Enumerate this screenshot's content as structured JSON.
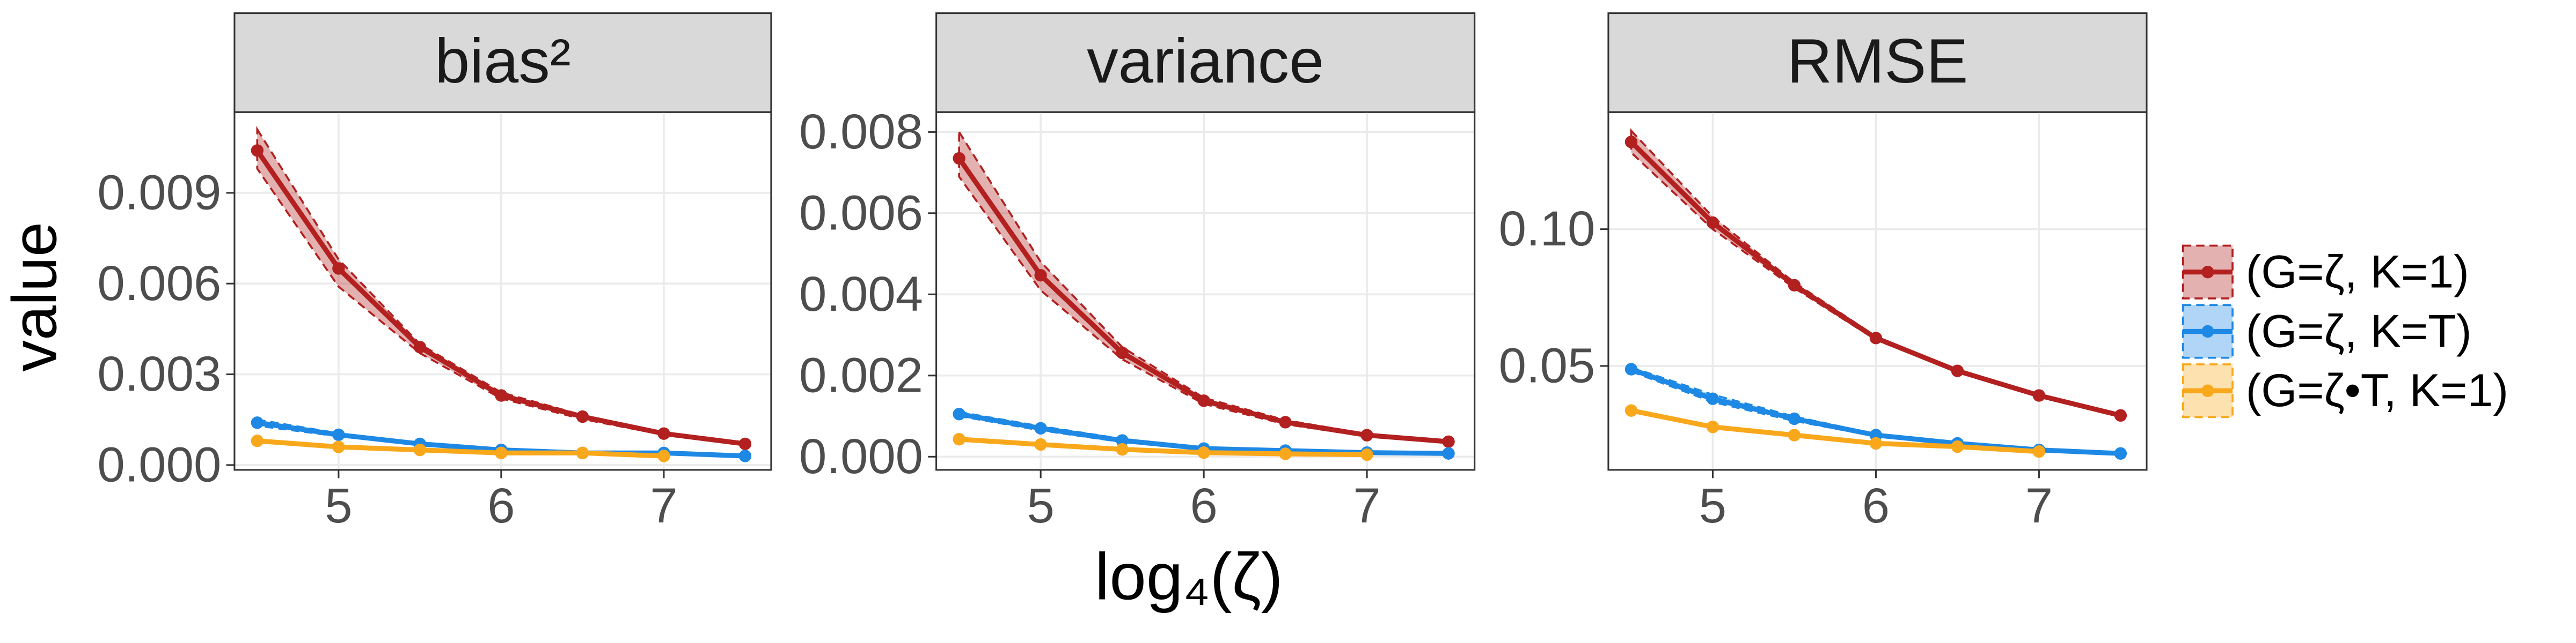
{
  "chart_data": [
    {
      "type": "line",
      "title": "bias²",
      "ylabel": "value",
      "x": [
        4.5,
        5,
        5.5,
        6,
        6.5,
        7,
        7.5
      ],
      "xlim": [
        4.36,
        7.66
      ],
      "xticks": [
        5,
        6,
        7
      ],
      "ylim": [
        -0.00016,
        0.01167
      ],
      "yticks": [
        {
          "value": 0,
          "label": "0.000"
        },
        {
          "value": 0.003,
          "label": "0.003"
        },
        {
          "value": 0.006,
          "label": "0.006"
        },
        {
          "value": 0.009,
          "label": "0.009"
        }
      ],
      "grid": true,
      "series": [
        {
          "name": "(G=ζ, K=1)",
          "color": "#b2201f",
          "values": [
            0.0104,
            0.0065,
            0.0039,
            0.0023,
            0.0016,
            0.00104,
            0.0007
          ],
          "upper": [
            0.0111,
            0.0068,
            0.004,
            0.0024,
            0.00165,
            0.00108,
            0.00073
          ],
          "lower": [
            0.0098,
            0.0059,
            0.0037,
            0.0022,
            0.00152,
            0.001,
            0.00067
          ]
        },
        {
          "name": "(G=ζ, K=T)",
          "color": "#1e88e5",
          "values": [
            0.0014,
            0.001,
            0.0007,
            0.0005,
            0.0004,
            0.0004,
            0.0003
          ],
          "upper": [
            0.0015,
            0.00105,
            0.00073,
            0.00053,
            0.00042,
            0.00042,
            0.00032
          ],
          "lower": [
            0.0013,
            0.00095,
            0.00067,
            0.00047,
            0.00038,
            0.00038,
            0.00028
          ]
        },
        {
          "name": "(G=ζ•T, K=1)",
          "color": "#f9a81b",
          "values": [
            0.0008,
            0.0006,
            0.0005,
            0.0004,
            0.0004,
            0.0003,
            null
          ],
          "upper": [
            0.00085,
            0.00063,
            0.00053,
            0.00043,
            0.00042,
            0.00032,
            null
          ],
          "lower": [
            0.00075,
            0.00057,
            0.00047,
            0.00037,
            0.00038,
            0.00028,
            null
          ]
        }
      ]
    },
    {
      "type": "line",
      "title": "variance",
      "xlabel": "log₄(ζ)",
      "x": [
        4.5,
        5,
        5.5,
        6,
        6.5,
        7,
        7.5
      ],
      "xlim": [
        4.36,
        7.66
      ],
      "xticks": [
        5,
        6,
        7
      ],
      "ylim": [
        -0.000325,
        0.00849
      ],
      "yticks": [
        {
          "value": 0,
          "label": "0.000"
        },
        {
          "value": 0.002,
          "label": "0.002"
        },
        {
          "value": 0.004,
          "label": "0.004"
        },
        {
          "value": 0.006,
          "label": "0.006"
        },
        {
          "value": 0.008,
          "label": "0.008"
        }
      ],
      "grid": true,
      "series": [
        {
          "name": "(G=ζ, K=1)",
          "color": "#b2201f",
          "values": [
            0.00735,
            0.00447,
            0.00256,
            0.00138,
            0.00085,
            0.00053,
            0.00037
          ],
          "upper": [
            0.008,
            0.0048,
            0.0027,
            0.00145,
            0.0009,
            0.00056,
            0.00039
          ],
          "lower": [
            0.0069,
            0.0041,
            0.0024,
            0.0013,
            0.0008,
            0.0005,
            0.00035
          ]
        },
        {
          "name": "(G=ζ, K=T)",
          "color": "#1e88e5",
          "values": [
            0.00105,
            0.0007,
            0.0004,
            0.0002,
            0.00015,
            0.0001,
            8e-05
          ],
          "upper": [
            0.0011,
            0.00075,
            0.00044,
            0.00023,
            0.00017,
            0.00012,
            0.0001
          ],
          "lower": [
            0.001,
            0.00065,
            0.00036,
            0.00017,
            0.00013,
            8e-05,
            6e-05
          ]
        },
        {
          "name": "(G=ζ•T, K=1)",
          "color": "#f9a81b",
          "values": [
            0.00043,
            0.0003,
            0.00018,
            0.0001,
            7e-05,
            5e-05,
            null
          ],
          "upper": [
            0.00046,
            0.00033,
            0.0002,
            0.00012,
            9e-05,
            7e-05,
            null
          ],
          "lower": [
            0.0004,
            0.00027,
            0.00016,
            8e-05,
            5e-05,
            3e-05,
            null
          ]
        }
      ]
    },
    {
      "type": "line",
      "title": "RMSE",
      "x": [
        4.5,
        5,
        5.5,
        6,
        6.5,
        7,
        7.5
      ],
      "xlim": [
        4.36,
        7.66
      ],
      "xticks": [
        5,
        6,
        7
      ],
      "ylim": [
        0.012,
        0.1428
      ],
      "yticks": [
        0.05,
        {
          "value": 0.1,
          "label": "0.10"
        }
      ],
      "grid": true,
      "series": [
        {
          "name": "(G=ζ, K=1)",
          "color": "#b2201f",
          "values": [
            0.1319,
            0.1024,
            0.0795,
            0.0602,
            0.0482,
            0.0392,
            0.0319
          ],
          "upper": [
            0.136,
            0.1045,
            0.0805,
            0.0608,
            0.0486,
            0.0395,
            0.0322
          ],
          "lower": [
            0.128,
            0.1,
            0.0785,
            0.0596,
            0.0478,
            0.0389,
            0.0316
          ]
        },
        {
          "name": "(G=ζ, K=T)",
          "color": "#1e88e5",
          "values": [
            0.0488,
            0.038,
            0.0307,
            0.0247,
            0.0217,
            0.0193,
            0.018
          ],
          "upper": [
            0.0495,
            0.0395,
            0.0315,
            0.0251,
            0.022,
            0.0195,
            0.0182
          ],
          "lower": [
            0.048,
            0.0368,
            0.0299,
            0.0243,
            0.0214,
            0.0191,
            0.0178
          ]
        },
        {
          "name": "(G=ζ•T, K=1)",
          "color": "#f9a81b",
          "values": [
            0.0337,
            0.0277,
            0.0247,
            0.0217,
            0.0205,
            0.0187,
            null
          ],
          "upper": [
            0.034,
            0.028,
            0.025,
            0.022,
            0.0208,
            0.019,
            null
          ],
          "lower": [
            0.0334,
            0.0274,
            0.0244,
            0.0214,
            0.0202,
            0.0184,
            null
          ]
        }
      ]
    }
  ]
}
